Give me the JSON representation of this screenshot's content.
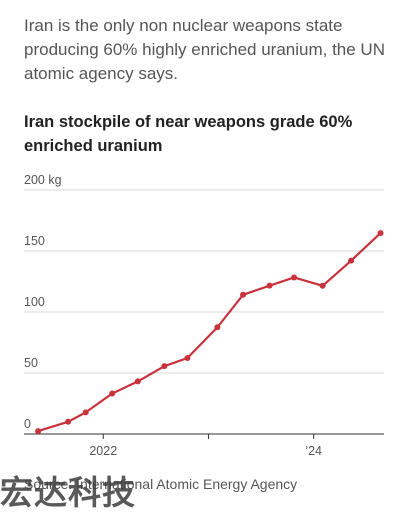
{
  "intro": "Iran is the only non nuclear weapons state producing 60% highly enriched uranium, the UN atomic agency says.",
  "source": "Source: International Atomic Energy Agency",
  "watermark": "宏达科技",
  "colors": {
    "line": "#c8323c",
    "grid": "#d8d8d8",
    "axis": "#333333",
    "text": "#555555"
  },
  "chart_data": {
    "type": "line",
    "title": "Iran stockpile of near weapons grade 60% enriched uranium",
    "ylabel": "",
    "xlabel": "",
    "y_unit": "kg",
    "ylim": [
      0,
      200
    ],
    "xlim": [
      "2021-04-01",
      "2024-09-01"
    ],
    "grid": true,
    "y_ticks": [
      {
        "value": 200,
        "label": "200 kg"
      },
      {
        "value": 150,
        "label": "150"
      },
      {
        "value": 100,
        "label": "100"
      },
      {
        "value": 50,
        "label": "50"
      },
      {
        "value": 0,
        "label": "0"
      }
    ],
    "x_ticks": [
      {
        "date": "2022-01-01",
        "label": "2022"
      },
      {
        "date": "2023-01-01",
        "label": ""
      },
      {
        "date": "2024-01-01",
        "label": "’24"
      }
    ],
    "series": [
      {
        "points": [
          {
            "x": "2021-05-20",
            "y": 2.4
          },
          {
            "x": "2021-09-01",
            "y": 10
          },
          {
            "x": "2021-11-01",
            "y": 17.7
          },
          {
            "x": "2022-02-01",
            "y": 33.2
          },
          {
            "x": "2022-05-01",
            "y": 43.1
          },
          {
            "x": "2022-08-01",
            "y": 55.6
          },
          {
            "x": "2022-10-20",
            "y": 62.3
          },
          {
            "x": "2023-02-01",
            "y": 87.5
          },
          {
            "x": "2023-05-01",
            "y": 114.1
          },
          {
            "x": "2023-08-01",
            "y": 121.6
          },
          {
            "x": "2023-10-25",
            "y": 128.3
          },
          {
            "x": "2024-02-01",
            "y": 121.5
          },
          {
            "x": "2024-05-10",
            "y": 142.1
          },
          {
            "x": "2024-08-20",
            "y": 164.7
          }
        ]
      }
    ]
  }
}
